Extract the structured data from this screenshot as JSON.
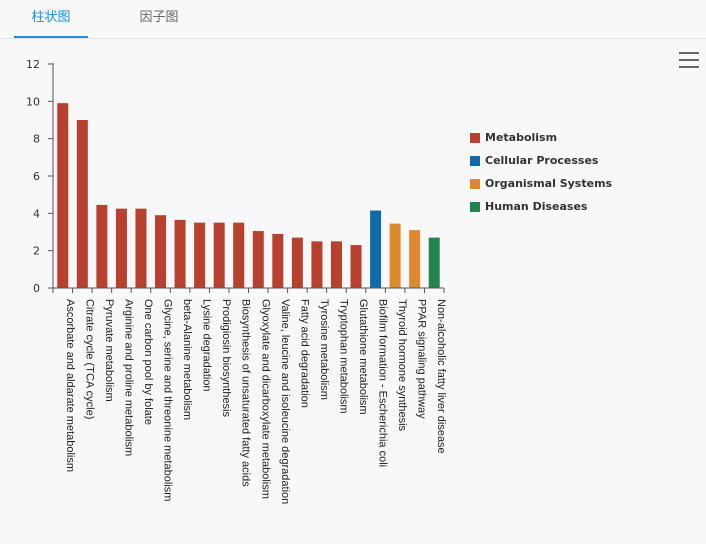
{
  "tabs": [
    {
      "label": "柱状图",
      "active": true
    },
    {
      "label": "因子图",
      "active": false
    }
  ],
  "menu_icon": "hamburger-menu-icon",
  "chart_data": {
    "type": "bar",
    "ylim": [
      0,
      12
    ],
    "yticks": [
      0,
      2,
      4,
      6,
      8,
      10,
      12
    ],
    "grid": false,
    "legend_position": "right",
    "categories": [
      "Ascorbate and aldarate metabolism",
      "Citrate cycle (TCA cycle)",
      "Pyruvate metabolism",
      "Arginine and proline metabolism",
      "One carbon pool by folate",
      "Glycine, serine and threonine metabolism",
      "beta-Alanine metabolism",
      "Lysine degradation",
      "Prodigiosin biosynthesis",
      "Biosynthesis of unsaturated fatty acids",
      "Glyoxylate and dicarboxylate metabolism",
      "Valine, leucine and isoleucine degradation",
      "Fatty acid degradation",
      "Tyrosine metabolism",
      "Tryptophan metabolism",
      "Glutathione metabolism",
      "Biofilm formation - Escherichia coli",
      "Thyroid hormone synthesis",
      "PPAR signaling pathway",
      "Non-alcoholic fatty liver disease"
    ],
    "values": [
      9.9,
      9.0,
      4.45,
      4.25,
      4.25,
      3.9,
      3.65,
      3.5,
      3.5,
      3.5,
      3.05,
      2.9,
      2.7,
      2.5,
      2.5,
      2.3,
      4.15,
      3.45,
      3.1,
      2.7
    ],
    "groups": [
      0,
      0,
      0,
      0,
      0,
      0,
      0,
      0,
      0,
      0,
      0,
      0,
      0,
      0,
      0,
      0,
      1,
      2,
      2,
      3
    ],
    "series": [
      {
        "name": "Metabolism",
        "color": "#b8402e"
      },
      {
        "name": "Cellular Processes",
        "color": "#116aaa"
      },
      {
        "name": "Organismal Systems",
        "color": "#dc8a2d"
      },
      {
        "name": "Human Diseases",
        "color": "#23844f"
      }
    ]
  }
}
